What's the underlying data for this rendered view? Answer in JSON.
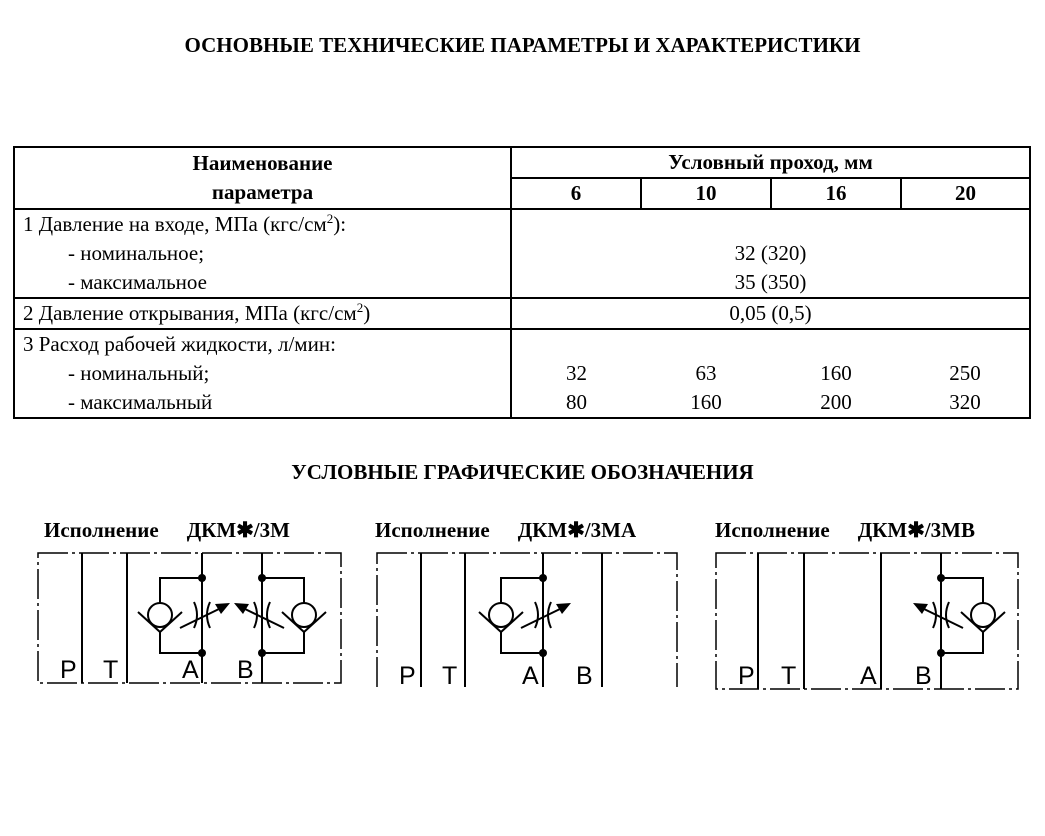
{
  "title": "ОСНОВНЫЕ ТЕХНИЧЕСКИЕ ПАРАМЕТРЫ И ХАРАКТЕРИСТИКИ",
  "table": {
    "param_header_1": "Наименование",
    "param_header_2": "параметра",
    "group_header": "Условный проход, мм",
    "sizes": [
      "6",
      "10",
      "16",
      "20"
    ],
    "rows": {
      "r1": {
        "label": "1 Давление на входе, МПа (кгс/см",
        "sup": "2",
        "tail": "):",
        "nominal_label": "- номинальное;",
        "nominal": "32 (320)",
        "max_label": "- максимальное",
        "max": "35 (350)"
      },
      "r2": {
        "label": "2 Давление открывания, МПа (кгс/см",
        "sup": "2",
        "tail": ")",
        "value": "0,05 (0,5)"
      },
      "r3": {
        "label": "3 Расход рабочей жидкости, л/мин:",
        "nominal_label": "- номинальный;",
        "nominal": [
          "32",
          "63",
          "160",
          "250"
        ],
        "max_label": "- максимальный",
        "max": [
          "80",
          "160",
          "200",
          "320"
        ]
      }
    }
  },
  "symbols_title": "УСЛОВНЫЕ ГРАФИЧЕСКИЕ ОБОЗНАЧЕНИЯ",
  "variants": [
    {
      "label": "Исполнение",
      "code": "ДКМ✱/3М"
    },
    {
      "label": "Исполнение",
      "code": "ДКМ✱/3МА"
    },
    {
      "label": "Исполнение",
      "code": "ДКМ✱/3МВ"
    }
  ],
  "ports": {
    "p": "P",
    "t": "T",
    "a": "A",
    "b": "B"
  }
}
